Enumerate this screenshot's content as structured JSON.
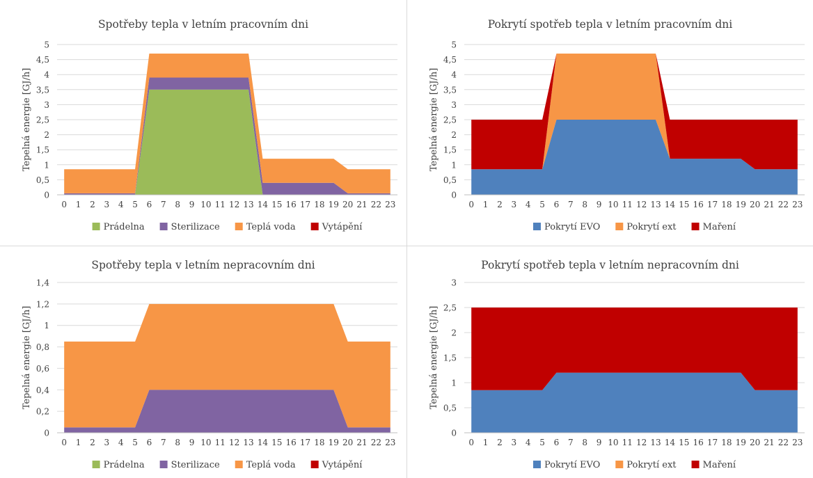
{
  "colors": {
    "pradelna": "#9bbb59",
    "sterilizace": "#8064a2",
    "tepla_voda": "#f79646",
    "vytapeni": "#c00000",
    "pokryti_evo": "#4f81bd",
    "pokryti_ext": "#f79646",
    "mareni": "#c00000",
    "gridline": "#d9d9d9",
    "axis": "#bfbfbf",
    "text": "#404040"
  },
  "chart_data": [
    {
      "type": "area",
      "stacked": true,
      "title": "Spotřeby tepla v letním pracovním dni",
      "ylabel": "Tepelná energie [GJ/h]",
      "xlabel": "",
      "ylim": [
        0,
        5
      ],
      "ytick_labels": [
        "0",
        "0,5",
        "1",
        "1,5",
        "2",
        "2,5",
        "3",
        "3,5",
        "4",
        "4,5",
        "5"
      ],
      "x": [
        0,
        1,
        2,
        3,
        4,
        5,
        6,
        7,
        8,
        9,
        10,
        11,
        12,
        13,
        14,
        15,
        16,
        17,
        18,
        19,
        20,
        21,
        22,
        23
      ],
      "legend_position": "bottom",
      "grid": true,
      "series": [
        {
          "name": "Prádelna",
          "color_key": "pradelna",
          "values": [
            0,
            0,
            0,
            0,
            0,
            0,
            3.5,
            3.5,
            3.5,
            3.5,
            3.5,
            3.5,
            3.5,
            3.5,
            0,
            0,
            0,
            0,
            0,
            0,
            0,
            0,
            0,
            0
          ]
        },
        {
          "name": "Sterilizace",
          "color_key": "sterilizace",
          "values": [
            0.05,
            0.05,
            0.05,
            0.05,
            0.05,
            0.05,
            0.4,
            0.4,
            0.4,
            0.4,
            0.4,
            0.4,
            0.4,
            0.4,
            0.4,
            0.4,
            0.4,
            0.4,
            0.4,
            0.4,
            0.05,
            0.05,
            0.05,
            0.05
          ]
        },
        {
          "name": "Teplá voda",
          "color_key": "tepla_voda",
          "values": [
            0.8,
            0.8,
            0.8,
            0.8,
            0.8,
            0.8,
            0.8,
            0.8,
            0.8,
            0.8,
            0.8,
            0.8,
            0.8,
            0.8,
            0.8,
            0.8,
            0.8,
            0.8,
            0.8,
            0.8,
            0.8,
            0.8,
            0.8,
            0.8
          ]
        },
        {
          "name": "Vytápění",
          "color_key": "vytapeni",
          "values": [
            0,
            0,
            0,
            0,
            0,
            0,
            0,
            0,
            0,
            0,
            0,
            0,
            0,
            0,
            0,
            0,
            0,
            0,
            0,
            0,
            0,
            0,
            0,
            0
          ]
        }
      ]
    },
    {
      "type": "area",
      "stacked": true,
      "title": "Pokrytí spotřeb tepla v letním pracovním dni",
      "ylabel": "Tepelná energie [GJ/h]",
      "xlabel": "",
      "ylim": [
        0,
        5
      ],
      "ytick_labels": [
        "0",
        "0,5",
        "1",
        "1,5",
        "2",
        "2,5",
        "3",
        "3,5",
        "4",
        "4,5",
        "5"
      ],
      "x": [
        0,
        1,
        2,
        3,
        4,
        5,
        6,
        7,
        8,
        9,
        10,
        11,
        12,
        13,
        14,
        15,
        16,
        17,
        18,
        19,
        20,
        21,
        22,
        23
      ],
      "legend_position": "bottom",
      "grid": true,
      "series": [
        {
          "name": "Pokrytí EVO",
          "color_key": "pokryti_evo",
          "values": [
            0.85,
            0.85,
            0.85,
            0.85,
            0.85,
            0.85,
            2.5,
            2.5,
            2.5,
            2.5,
            2.5,
            2.5,
            2.5,
            2.5,
            1.2,
            1.2,
            1.2,
            1.2,
            1.2,
            1.2,
            0.85,
            0.85,
            0.85,
            0.85
          ]
        },
        {
          "name": "Pokrytí ext",
          "color_key": "pokryti_ext",
          "values": [
            0,
            0,
            0,
            0,
            0,
            0,
            2.2,
            2.2,
            2.2,
            2.2,
            2.2,
            2.2,
            2.2,
            2.2,
            0,
            0,
            0,
            0,
            0,
            0,
            0,
            0,
            0,
            0
          ]
        },
        {
          "name": "Maření",
          "color_key": "mareni",
          "values": [
            1.65,
            1.65,
            1.65,
            1.65,
            1.65,
            1.65,
            0,
            0,
            0,
            0,
            0,
            0,
            0,
            0,
            1.3,
            1.3,
            1.3,
            1.3,
            1.3,
            1.3,
            1.65,
            1.65,
            1.65,
            1.65
          ]
        }
      ]
    },
    {
      "type": "area",
      "stacked": true,
      "title": "Spotřeby tepla v letním nepracovním dni",
      "ylabel": "Tepelná energie [GJ/h]",
      "xlabel": "",
      "ylim": [
        0,
        1.4
      ],
      "ytick_labels": [
        "0",
        "0,2",
        "0,4",
        "0,6",
        "0,8",
        "1",
        "1,2",
        "1,4"
      ],
      "x": [
        0,
        1,
        2,
        3,
        4,
        5,
        6,
        7,
        8,
        9,
        10,
        11,
        12,
        13,
        14,
        15,
        16,
        17,
        18,
        19,
        20,
        21,
        22,
        23
      ],
      "legend_position": "bottom",
      "grid": true,
      "series": [
        {
          "name": "Prádelna",
          "color_key": "pradelna",
          "values": [
            0,
            0,
            0,
            0,
            0,
            0,
            0,
            0,
            0,
            0,
            0,
            0,
            0,
            0,
            0,
            0,
            0,
            0,
            0,
            0,
            0,
            0,
            0,
            0
          ]
        },
        {
          "name": "Sterilizace",
          "color_key": "sterilizace",
          "values": [
            0.05,
            0.05,
            0.05,
            0.05,
            0.05,
            0.05,
            0.4,
            0.4,
            0.4,
            0.4,
            0.4,
            0.4,
            0.4,
            0.4,
            0.4,
            0.4,
            0.4,
            0.4,
            0.4,
            0.4,
            0.05,
            0.05,
            0.05,
            0.05
          ]
        },
        {
          "name": "Teplá voda",
          "color_key": "tepla_voda",
          "values": [
            0.8,
            0.8,
            0.8,
            0.8,
            0.8,
            0.8,
            0.8,
            0.8,
            0.8,
            0.8,
            0.8,
            0.8,
            0.8,
            0.8,
            0.8,
            0.8,
            0.8,
            0.8,
            0.8,
            0.8,
            0.8,
            0.8,
            0.8,
            0.8
          ]
        },
        {
          "name": "Vytápění",
          "color_key": "vytapeni",
          "values": [
            0,
            0,
            0,
            0,
            0,
            0,
            0,
            0,
            0,
            0,
            0,
            0,
            0,
            0,
            0,
            0,
            0,
            0,
            0,
            0,
            0,
            0,
            0,
            0
          ]
        }
      ]
    },
    {
      "type": "area",
      "stacked": true,
      "title": "Pokrytí spotřeb tepla v letním nepracovním dni",
      "ylabel": "Tepelná energie [GJ/h]",
      "xlabel": "",
      "ylim": [
        0,
        3
      ],
      "ytick_labels": [
        "0",
        "0,5",
        "1",
        "1,5",
        "2",
        "2,5",
        "3"
      ],
      "x": [
        0,
        1,
        2,
        3,
        4,
        5,
        6,
        7,
        8,
        9,
        10,
        11,
        12,
        13,
        14,
        15,
        16,
        17,
        18,
        19,
        20,
        21,
        22,
        23
      ],
      "legend_position": "bottom",
      "grid": true,
      "series": [
        {
          "name": "Pokrytí EVO",
          "color_key": "pokryti_evo",
          "values": [
            0.85,
            0.85,
            0.85,
            0.85,
            0.85,
            0.85,
            1.2,
            1.2,
            1.2,
            1.2,
            1.2,
            1.2,
            1.2,
            1.2,
            1.2,
            1.2,
            1.2,
            1.2,
            1.2,
            1.2,
            0.85,
            0.85,
            0.85,
            0.85
          ]
        },
        {
          "name": "Pokrytí ext",
          "color_key": "pokryti_ext",
          "values": [
            0,
            0,
            0,
            0,
            0,
            0,
            0,
            0,
            0,
            0,
            0,
            0,
            0,
            0,
            0,
            0,
            0,
            0,
            0,
            0,
            0,
            0,
            0,
            0
          ]
        },
        {
          "name": "Maření",
          "color_key": "mareni",
          "values": [
            1.65,
            1.65,
            1.65,
            1.65,
            1.65,
            1.65,
            1.3,
            1.3,
            1.3,
            1.3,
            1.3,
            1.3,
            1.3,
            1.3,
            1.3,
            1.3,
            1.3,
            1.3,
            1.3,
            1.3,
            1.65,
            1.65,
            1.65,
            1.65
          ]
        }
      ]
    }
  ]
}
